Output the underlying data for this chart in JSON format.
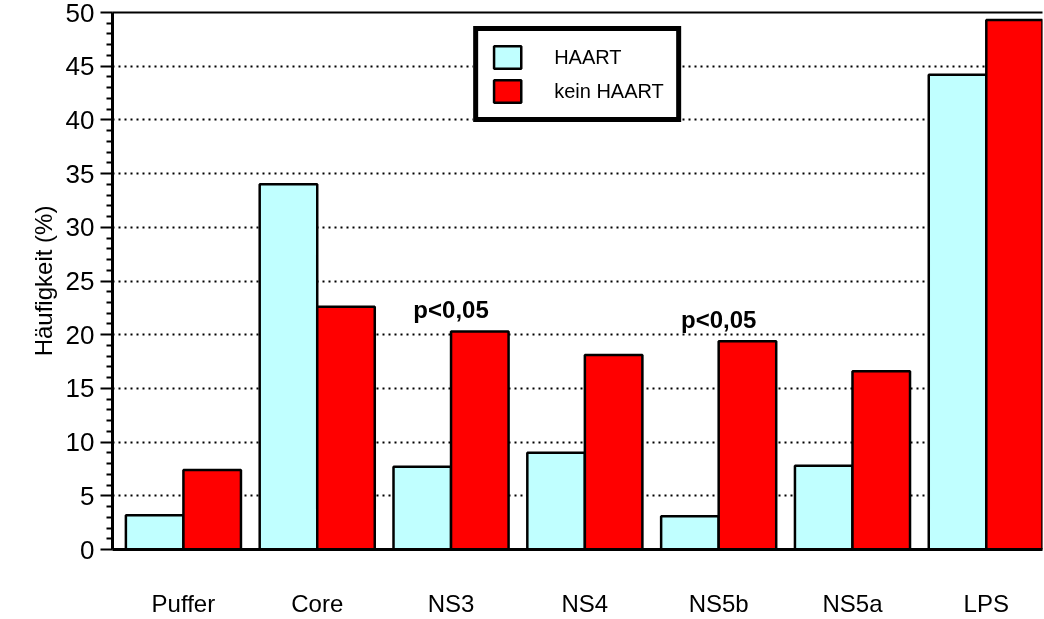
{
  "chart_data": {
    "type": "bar",
    "ylabel": "Häufigkeit (%)",
    "categories": [
      "Puffer",
      "Core",
      "NS3",
      "NS4",
      "NS5b",
      "NS5a",
      "LPS"
    ],
    "series": [
      {
        "name": "HAART",
        "color": "#c0ffff",
        "values": [
          3.2,
          34.0,
          7.7,
          9.0,
          3.1,
          7.8,
          44.2
        ]
      },
      {
        "name": "kein HAART",
        "color": "#ff0000",
        "values": [
          7.4,
          22.6,
          20.3,
          18.1,
          19.4,
          16.6,
          49.3
        ]
      }
    ],
    "ylim": [
      0,
      50
    ],
    "yticks": [
      0,
      5,
      10,
      15,
      20,
      25,
      30,
      35,
      40,
      45,
      50
    ],
    "grid": "y",
    "legend": "top",
    "annotations": [
      {
        "text": "p<0,05",
        "x": "NS3",
        "y": 20.3
      },
      {
        "text": "p<0,05",
        "x": "NS5b",
        "y": 19.4
      }
    ]
  }
}
